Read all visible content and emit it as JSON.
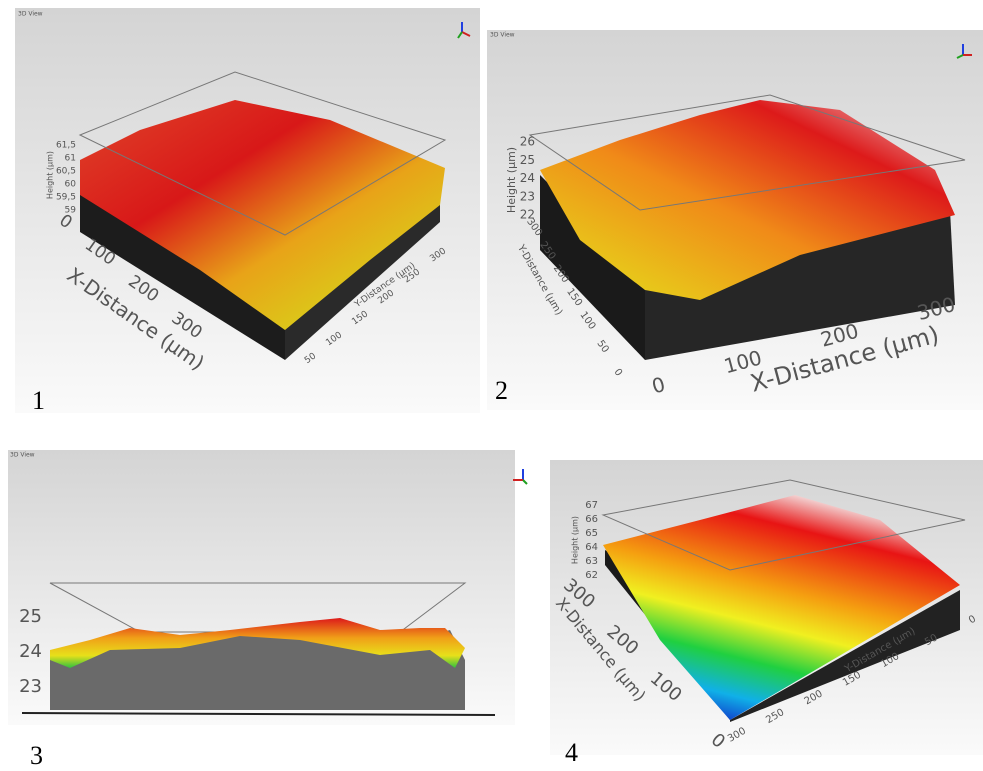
{
  "panels": [
    {
      "number": "1",
      "view_label": "3D View",
      "height_label": "Height (µm)",
      "height_ticks": [
        "61,5",
        "61",
        "60,5",
        "60",
        "59,5",
        "59"
      ],
      "x_label": "X-Distance (µm)",
      "x_ticks": [
        "0",
        "100",
        "200",
        "300"
      ],
      "y_label": "Y-Distance (µm)",
      "y_ticks": [
        "50",
        "100",
        "150",
        "200",
        "250",
        "300"
      ]
    },
    {
      "number": "2",
      "view_label": "3D View",
      "height_label": "Height (µm)",
      "height_ticks": [
        "26",
        "25",
        "24",
        "23",
        "22"
      ],
      "x_label": "X-Distance (µm)",
      "x_ticks": [
        "0",
        "100",
        "200",
        "300"
      ],
      "y_label": "Y-Distance (µm)",
      "y_ticks": [
        "300",
        "250",
        "200",
        "150",
        "100",
        "50",
        "0"
      ]
    },
    {
      "number": "3",
      "view_label": "3D View",
      "height_ticks": [
        "25",
        "24",
        "23"
      ]
    },
    {
      "number": "4",
      "height_label": "Height (µm)",
      "height_ticks": [
        "67",
        "66",
        "65",
        "64",
        "63",
        "62"
      ],
      "x_label": "X-Distance (µm)",
      "x_ticks": [
        "300",
        "200",
        "100",
        "0"
      ],
      "y_label": "Y-Distance (µm)",
      "y_ticks": [
        "300",
        "250",
        "200",
        "150",
        "100",
        "50",
        "0"
      ]
    }
  ]
}
